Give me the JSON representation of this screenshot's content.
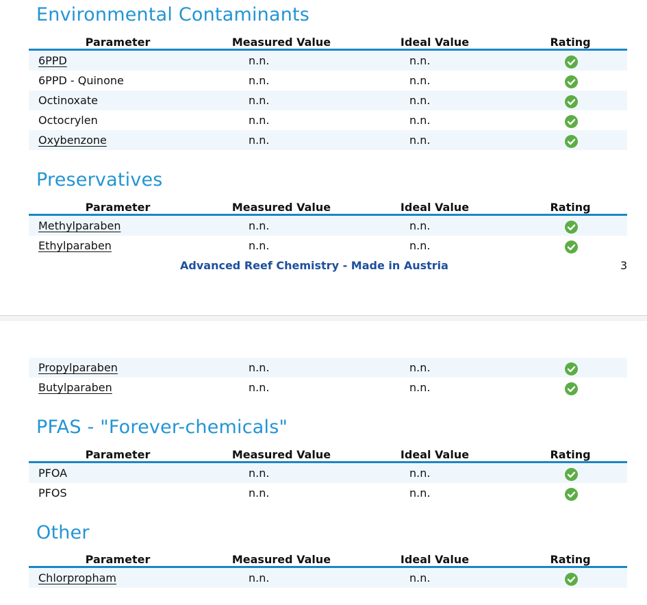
{
  "table_headers": {
    "parameter": "Parameter",
    "measured": "Measured Value",
    "ideal": "Ideal Value",
    "rating": "Rating"
  },
  "sections": {
    "env": {
      "title": "Environmental Contaminants",
      "rows": [
        {
          "name": "6PPD",
          "measured": "n.n.",
          "ideal": "n.n.",
          "rating": "check-icon"
        },
        {
          "name": "6PPD - Quinone",
          "measured": "n.n.",
          "ideal": "n.n.",
          "rating": "check-icon"
        },
        {
          "name": "Octinoxate",
          "measured": "n.n.",
          "ideal": "n.n.",
          "rating": "check-icon"
        },
        {
          "name": "Octocrylen",
          "measured": "n.n.",
          "ideal": "n.n.",
          "rating": "check-icon"
        },
        {
          "name": "Oxybenzone",
          "measured": "n.n.",
          "ideal": "n.n.",
          "rating": "check-icon"
        }
      ]
    },
    "pres": {
      "title": "Preservatives",
      "rows": [
        {
          "name": "Methylparaben",
          "measured": "n.n.",
          "ideal": "n.n.",
          "rating": "check-icon"
        },
        {
          "name": "Ethylparaben",
          "measured": "n.n.",
          "ideal": "n.n.",
          "rating": "check-icon"
        },
        {
          "name": "Propylparaben",
          "measured": "n.n.",
          "ideal": "n.n.",
          "rating": "check-icon"
        },
        {
          "name": "Butylparaben",
          "measured": "n.n.",
          "ideal": "n.n.",
          "rating": "check-icon"
        }
      ]
    },
    "pfas": {
      "title": "PFAS - \"Forever-chemicals\"",
      "rows": [
        {
          "name": "PFOA",
          "measured": "n.n.",
          "ideal": "n.n.",
          "rating": "check-icon"
        },
        {
          "name": "PFOS",
          "measured": "n.n.",
          "ideal": "n.n.",
          "rating": "check-icon"
        }
      ]
    },
    "other": {
      "title": "Other",
      "rows": [
        {
          "name": "Chlorpropham",
          "measured": "n.n.",
          "ideal": "n.n.",
          "rating": "check-icon"
        }
      ]
    }
  },
  "footer": {
    "text": "Advanced Reef Chemistry - Made in Austria",
    "page": "3"
  },
  "colors": {
    "heading": "#2494d3",
    "rule": "#1a86c6",
    "footer": "#1e4f9c",
    "ok": "#5cad45",
    "row_alt": "#f0f7fc"
  }
}
